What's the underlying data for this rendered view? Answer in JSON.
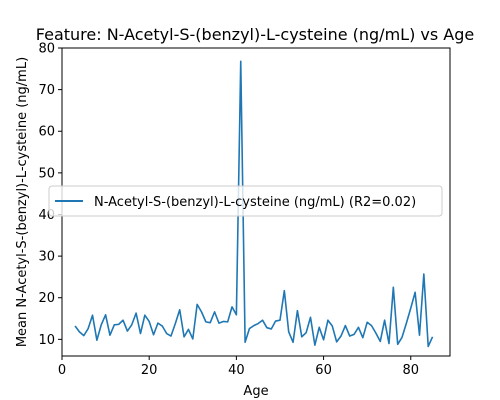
{
  "chart_data": {
    "type": "line",
    "title": "Feature: N-Acetyl-S-(benzyl)-L-cysteine (ng/mL) vs Age",
    "xlabel": "Age",
    "ylabel": "Mean N-Acetyl-S-(benzyl)-L-cysteine (ng/mL)",
    "xlim": [
      0,
      89
    ],
    "ylim": [
      6,
      80
    ],
    "xticks": [
      0,
      20,
      40,
      60,
      80
    ],
    "yticks": [
      10,
      20,
      30,
      40,
      50,
      60,
      70,
      80
    ],
    "grid": false,
    "legend_position": "center-left",
    "series": [
      {
        "name": "N-Acetyl-S-(benzyl)-L-cysteine (ng/mL) (R2=0.02)",
        "color": "#1f77b4",
        "x": [
          3,
          4,
          5,
          6,
          7,
          8,
          9,
          10,
          11,
          12,
          13,
          14,
          15,
          16,
          17,
          18,
          19,
          20,
          21,
          22,
          23,
          24,
          25,
          26,
          27,
          28,
          29,
          30,
          31,
          32,
          33,
          34,
          35,
          36,
          37,
          38,
          39,
          40,
          41,
          42,
          43,
          44,
          45,
          46,
          47,
          48,
          49,
          50,
          51,
          52,
          53,
          54,
          55,
          56,
          57,
          58,
          59,
          60,
          61,
          62,
          63,
          64,
          65,
          66,
          67,
          68,
          69,
          70,
          71,
          72,
          73,
          74,
          75,
          76,
          77,
          78,
          79,
          80,
          81,
          82,
          83,
          84,
          85
        ],
        "y": [
          13.2,
          11.8,
          10.9,
          12.6,
          15.8,
          9.8,
          13.5,
          15.9,
          11.0,
          13.5,
          13.6,
          14.6,
          12.0,
          13.5,
          16.3,
          11.4,
          15.8,
          14.3,
          11.1,
          13.9,
          13.2,
          11.4,
          10.8,
          13.8,
          17.1,
          10.6,
          12.4,
          10.1,
          18.4,
          16.6,
          14.2,
          14.0,
          16.6,
          13.9,
          14.3,
          14.2,
          17.8,
          15.9,
          76.8,
          9.3,
          12.6,
          13.3,
          13.8,
          14.6,
          12.8,
          12.5,
          14.4,
          14.6,
          21.7,
          11.8,
          9.3,
          16.9,
          10.6,
          11.6,
          15.3,
          8.6,
          12.9,
          9.9,
          14.6,
          13.2,
          9.4,
          10.8,
          13.3,
          10.8,
          11.2,
          12.9,
          10.4,
          14.1,
          13.3,
          11.5,
          9.5,
          14.6,
          9.0,
          22.5,
          8.8,
          10.5,
          13.9,
          17.5,
          21.3,
          11.0,
          25.7,
          8.3,
          10.6
        ]
      }
    ]
  }
}
